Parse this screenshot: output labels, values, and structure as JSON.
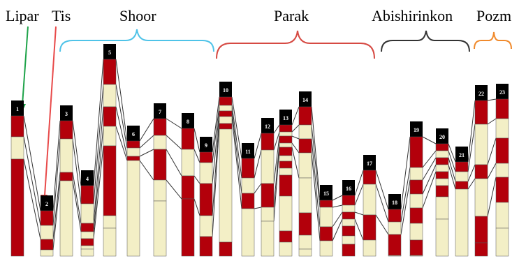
{
  "labels": {
    "lipar": "Lipar",
    "tis": "Tis",
    "shoor": "Shoor",
    "parak": "Parak",
    "abishirinkon": "Abishirinkon",
    "pozm": "Pozm"
  },
  "colors": {
    "red": "#b3000b",
    "cream": "#f3efc6",
    "black": "#000000",
    "shoor": "#4fc3e8",
    "parak": "#d64a43",
    "abishirinkon": "#333333",
    "pozm": "#f08a2c",
    "lipar_arrow": "#1fa34a",
    "tis_arrow": "#e84a4a"
  },
  "columns": [
    {
      "num": "1"
    },
    {
      "num": "2"
    },
    {
      "num": "3"
    },
    {
      "num": "4"
    },
    {
      "num": "5"
    },
    {
      "num": "6"
    },
    {
      "num": "7"
    },
    {
      "num": "8"
    },
    {
      "num": "9"
    },
    {
      "num": "10"
    },
    {
      "num": "11"
    },
    {
      "num": "12"
    },
    {
      "num": "13"
    },
    {
      "num": "14"
    },
    {
      "num": "15"
    },
    {
      "num": "16"
    },
    {
      "num": "17"
    },
    {
      "num": "18"
    },
    {
      "num": "19"
    },
    {
      "num": "20"
    },
    {
      "num": "21"
    },
    {
      "num": "22"
    },
    {
      "num": "23"
    }
  ]
}
